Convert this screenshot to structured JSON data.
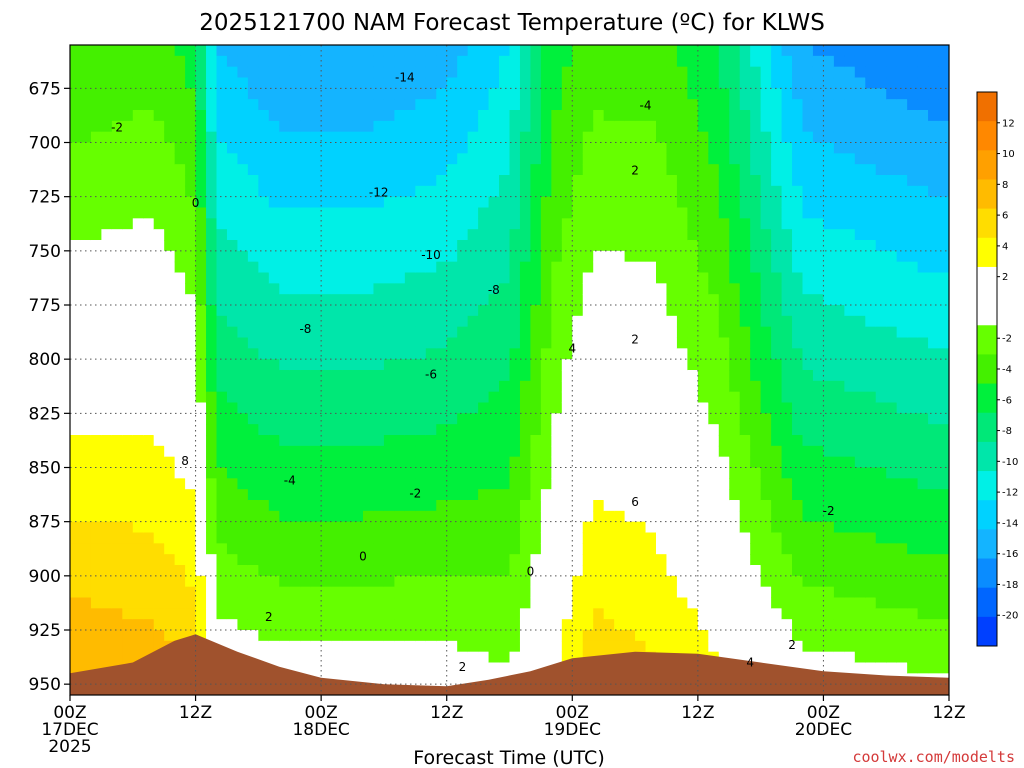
{
  "chart_data": {
    "type": "heatmap",
    "title": "2025121700 NAM Forecast Temperature (ºC) for KLWS",
    "xlabel": "Forecast Time (UTC)",
    "ylabel": "",
    "y_axis": "pressure (hPa), increasing downward",
    "ylim": [
      955,
      655
    ],
    "yticks": [
      675,
      700,
      725,
      750,
      775,
      800,
      825,
      850,
      875,
      900,
      925,
      950
    ],
    "xlim_hours": [
      0,
      84
    ],
    "xticks": [
      {
        "hour": 0,
        "line1": "00Z",
        "line2": "17DEC",
        "line3": "2025"
      },
      {
        "hour": 12,
        "line1": "12Z",
        "line2": "",
        "line3": ""
      },
      {
        "hour": 24,
        "line1": "00Z",
        "line2": "18DEC",
        "line3": ""
      },
      {
        "hour": 36,
        "line1": "12Z",
        "line2": "",
        "line3": ""
      },
      {
        "hour": 48,
        "line1": "00Z",
        "line2": "19DEC",
        "line3": ""
      },
      {
        "hour": 60,
        "line1": "12Z",
        "line2": "",
        "line3": ""
      },
      {
        "hour": 72,
        "line1": "00Z",
        "line2": "20DEC",
        "line3": ""
      },
      {
        "hour": 84,
        "line1": "12Z",
        "line2": "",
        "line3": ""
      }
    ],
    "grid": true,
    "legend_placement": "right",
    "colorbar": {
      "min": -22,
      "max": 14,
      "step": 2,
      "tick_labels": [
        "12",
        "10",
        "8",
        "6",
        "4",
        "2",
        "-2",
        "-4",
        "-6",
        "-8",
        "-10",
        "-12",
        "-14",
        "-16",
        "-18",
        "-20"
      ],
      "colors": [
        "#0040ff",
        "#0066ff",
        "#0a8cff",
        "#14b4ff",
        "#00d2ff",
        "#00f0e6",
        "#00e6aa",
        "#00e878",
        "#00f03c",
        "#44f000",
        "#66ff00",
        "#ffffff",
        "#ffffff",
        "#ffff00",
        "#ffdd00",
        "#ffbb00",
        "#ffa000",
        "#ff8800",
        "#f07000"
      ]
    },
    "ground_color": "#a0522d",
    "ground_surface": [
      {
        "h": 0,
        "p": 945
      },
      {
        "h": 6,
        "p": 940
      },
      {
        "h": 10,
        "p": 930
      },
      {
        "h": 12,
        "p": 927
      },
      {
        "h": 16,
        "p": 935
      },
      {
        "h": 20,
        "p": 942
      },
      {
        "h": 24,
        "p": 947
      },
      {
        "h": 30,
        "p": 950
      },
      {
        "h": 36,
        "p": 951
      },
      {
        "h": 40,
        "p": 948
      },
      {
        "h": 44,
        "p": 944
      },
      {
        "h": 48,
        "p": 938
      },
      {
        "h": 54,
        "p": 935
      },
      {
        "h": 60,
        "p": 936
      },
      {
        "h": 66,
        "p": 940
      },
      {
        "h": 72,
        "p": 944
      },
      {
        "h": 78,
        "p": 946
      },
      {
        "h": 84,
        "p": 947
      }
    ],
    "temperature_profiles": [
      {
        "h": 0,
        "T_pbot": 11,
        "T_ptop": -4,
        "lapse": "moist"
      },
      {
        "h": 8,
        "T_pbot": 10,
        "T_ptop": -3,
        "lapse": "moist"
      },
      {
        "h": 12,
        "T_pbot": 9,
        "T_ptop": -5,
        "lapse": "moist"
      },
      {
        "h": 14,
        "T_pbot": 3,
        "T_ptop": -14,
        "lapse": "moist"
      },
      {
        "h": 20,
        "T_pbot": 2,
        "T_ptop": -16,
        "lapse": "moist"
      },
      {
        "h": 28,
        "T_pbot": 2,
        "T_ptop": -16,
        "lapse": "moist"
      },
      {
        "h": 36,
        "T_pbot": 2,
        "T_ptop": -15,
        "lapse": "moist"
      },
      {
        "h": 42,
        "T_pbot": 1,
        "T_ptop": -12,
        "lapse": "moist"
      },
      {
        "h": 46,
        "T_pbot": 4,
        "T_ptop": -5,
        "lapse": "moist"
      },
      {
        "h": 50,
        "T_pbot": 8,
        "T_ptop": -3,
        "lapse": "moist"
      },
      {
        "h": 56,
        "T_pbot": 7,
        "T_ptop": -3,
        "lapse": "moist"
      },
      {
        "h": 62,
        "T_pbot": 5,
        "T_ptop": -6,
        "lapse": "moist"
      },
      {
        "h": 70,
        "T_pbot": 2,
        "T_ptop": -16,
        "lapse": "moist"
      },
      {
        "h": 84,
        "T_pbot": 1,
        "T_ptop": -18,
        "lapse": "moist"
      }
    ],
    "contour_labels": [
      {
        "h": 4.5,
        "p": 693,
        "text": "-2"
      },
      {
        "h": 12,
        "p": 728,
        "text": "0"
      },
      {
        "h": 11,
        "p": 847,
        "text": "8"
      },
      {
        "h": 19,
        "p": 919,
        "text": "2"
      },
      {
        "h": 22.5,
        "p": 786,
        "text": "-8"
      },
      {
        "h": 21,
        "p": 856,
        "text": "-4"
      },
      {
        "h": 32,
        "p": 670,
        "text": "-14"
      },
      {
        "h": 29.5,
        "p": 723,
        "text": "-12"
      },
      {
        "h": 34.5,
        "p": 752,
        "text": "-10"
      },
      {
        "h": 34.5,
        "p": 807,
        "text": "-6"
      },
      {
        "h": 33,
        "p": 862,
        "text": "-2"
      },
      {
        "h": 28,
        "p": 891,
        "text": "0"
      },
      {
        "h": 37.5,
        "p": 942,
        "text": "2"
      },
      {
        "h": 40.5,
        "p": 768,
        "text": "-8"
      },
      {
        "h": 44,
        "p": 898,
        "text": "0"
      },
      {
        "h": 55,
        "p": 683,
        "text": "-4"
      },
      {
        "h": 54,
        "p": 713,
        "text": "2"
      },
      {
        "h": 48,
        "p": 795,
        "text": "4"
      },
      {
        "h": 54,
        "p": 791,
        "text": "2"
      },
      {
        "h": 54,
        "p": 866,
        "text": "6"
      },
      {
        "h": 65,
        "p": 940,
        "text": "4"
      },
      {
        "h": 69,
        "p": 932,
        "text": "2"
      },
      {
        "h": 72.5,
        "p": 870,
        "text": "-2"
      }
    ]
  },
  "credit": "coolwx.com/modelts"
}
